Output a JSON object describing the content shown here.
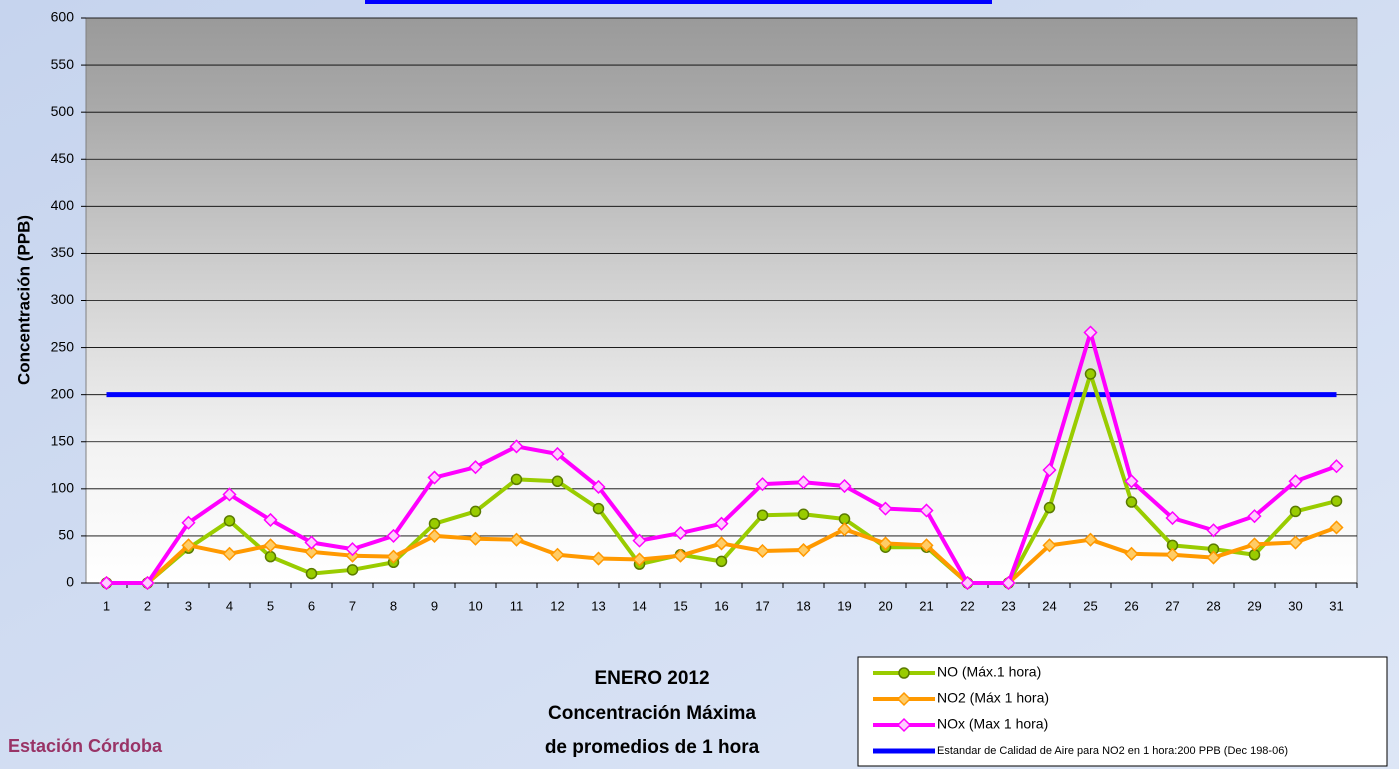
{
  "chart_data": {
    "type": "line",
    "title_lines": [
      "ENERO 2012",
      "Concentración Máxima",
      "de promedios de 1 hora"
    ],
    "station": "Estación Córdoba",
    "y_label": "Concentración  (PPB)",
    "categories": [
      "1",
      "2",
      "3",
      "4",
      "5",
      "6",
      "7",
      "8",
      "9",
      "10",
      "11",
      "12",
      "13",
      "14",
      "15",
      "16",
      "17",
      "18",
      "19",
      "20",
      "21",
      "22",
      "23",
      "24",
      "25",
      "26",
      "27",
      "28",
      "29",
      "30",
      "31"
    ],
    "ylim": [
      0,
      600
    ],
    "yticks": [
      0,
      50,
      100,
      150,
      200,
      250,
      300,
      350,
      400,
      450,
      500,
      550,
      600
    ],
    "grid": true,
    "legend": "bottom-right",
    "series": [
      {
        "name": "NO (Máx.1 hora)",
        "color": "#99cc00",
        "marker": "circle",
        "values": [
          0,
          0,
          37,
          66,
          28,
          10,
          14,
          22,
          63,
          76,
          110,
          108,
          79,
          20,
          30,
          23,
          72,
          73,
          68,
          38,
          38,
          0,
          0,
          80,
          222,
          86,
          40,
          36,
          30,
          76,
          87
        ]
      },
      {
        "name": "NO2 (Máx 1 hora)",
        "color": "#ff9900",
        "marker": "diamond",
        "values": [
          0,
          0,
          40,
          31,
          40,
          33,
          29,
          28,
          50,
          47,
          46,
          30,
          26,
          25,
          29,
          42,
          34,
          35,
          57,
          42,
          40,
          0,
          0,
          40,
          46,
          31,
          30,
          27,
          41,
          43,
          59
        ]
      },
      {
        "name": "NOx (Max 1 hora)",
        "color": "#ff00ff",
        "marker": "diamond",
        "values": [
          0,
          0,
          64,
          94,
          67,
          43,
          36,
          50,
          112,
          123,
          145,
          137,
          102,
          45,
          53,
          63,
          105,
          107,
          103,
          79,
          77,
          0,
          0,
          120,
          266,
          108,
          69,
          56,
          71,
          108,
          124
        ]
      },
      {
        "name": "Estandar de Calidad de Aire para NO2 en 1 hora:200 PPB (Dec 198-06)",
        "color": "#0000ff",
        "marker": "none",
        "values": [
          200,
          200,
          200,
          200,
          200,
          200,
          200,
          200,
          200,
          200,
          200,
          200,
          200,
          200,
          200,
          200,
          200,
          200,
          200,
          200,
          200,
          200,
          200,
          200,
          200,
          200,
          200,
          200,
          200,
          200,
          200
        ]
      }
    ]
  }
}
